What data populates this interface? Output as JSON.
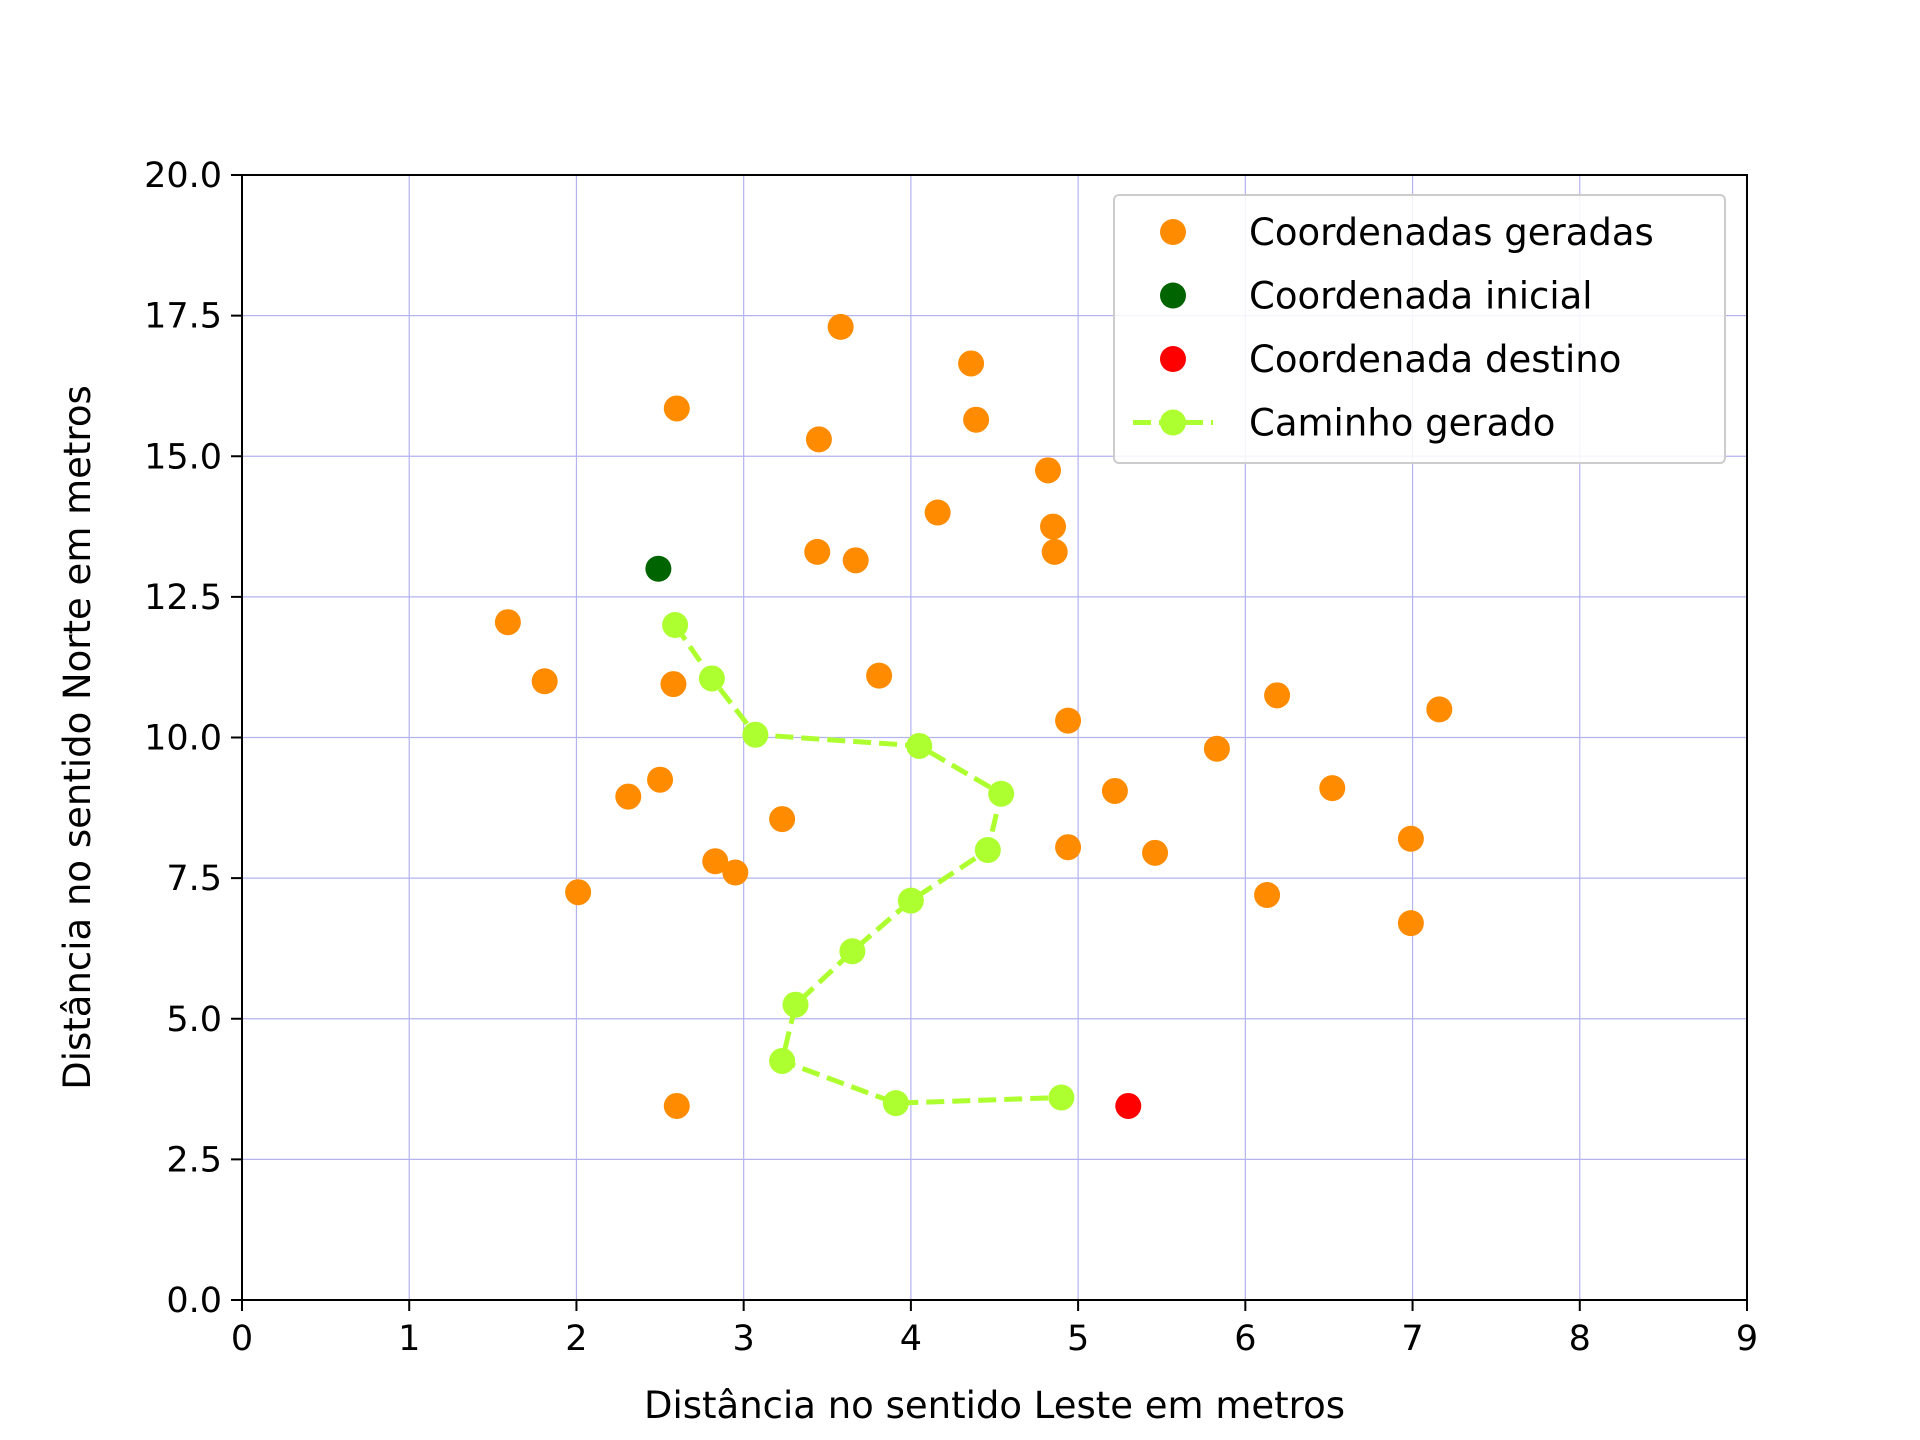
{
  "chart_data": {
    "type": "scatter",
    "title": "",
    "xlabel": "Distância no sentido Leste em metros",
    "ylabel": "Distância no sentido Norte em metros",
    "xlim": [
      0,
      9
    ],
    "ylim": [
      0,
      20
    ],
    "xticks": [
      "0",
      "1",
      "2",
      "3",
      "4",
      "5",
      "6",
      "7",
      "8",
      "9"
    ],
    "yticks": [
      "0.0",
      "2.5",
      "5.0",
      "7.5",
      "10.0",
      "12.5",
      "15.0",
      "17.5",
      "20.0"
    ],
    "grid": true,
    "grid_color": "#b3b3f0",
    "legend_position": "top-right",
    "series": [
      {
        "name": "Coordenadas geradas",
        "style": "markers",
        "color": "#ff8c00",
        "x": [
          3.58,
          4.36,
          2.6,
          4.39,
          3.45,
          4.82,
          4.16,
          4.85,
          3.44,
          3.67,
          4.86,
          1.59,
          1.81,
          2.58,
          3.81,
          6.19,
          7.16,
          4.94,
          5.83,
          2.31,
          2.5,
          5.22,
          6.52,
          3.23,
          6.99,
          4.94,
          5.46,
          2.83,
          2.95,
          2.01,
          6.13,
          6.99,
          2.6
        ],
        "y": [
          17.3,
          16.65,
          15.85,
          15.65,
          15.3,
          14.75,
          14.0,
          13.75,
          13.3,
          13.15,
          13.3,
          12.05,
          11.0,
          10.95,
          11.1,
          10.75,
          10.5,
          10.3,
          9.8,
          8.95,
          9.25,
          9.05,
          9.1,
          8.55,
          8.2,
          8.05,
          7.95,
          7.8,
          7.6,
          7.25,
          7.2,
          6.7,
          3.45
        ]
      },
      {
        "name": "Coordenada inicial",
        "style": "markers",
        "color": "#006400",
        "x": [
          2.49
        ],
        "y": [
          13.0
        ]
      },
      {
        "name": "Coordenada destino",
        "style": "markers",
        "color": "#ff0000",
        "x": [
          5.3
        ],
        "y": [
          3.45
        ]
      },
      {
        "name": "Caminho gerado",
        "style": "dashed-line-markers",
        "color": "#adff2f",
        "x": [
          2.59,
          2.81,
          3.07,
          4.05,
          4.54,
          4.46,
          4.0,
          3.65,
          3.31,
          3.23,
          3.91,
          4.9
        ],
        "y": [
          12.0,
          11.05,
          10.05,
          9.85,
          9.0,
          8.0,
          7.1,
          6.2,
          5.25,
          4.25,
          3.5,
          3.6
        ]
      }
    ]
  }
}
